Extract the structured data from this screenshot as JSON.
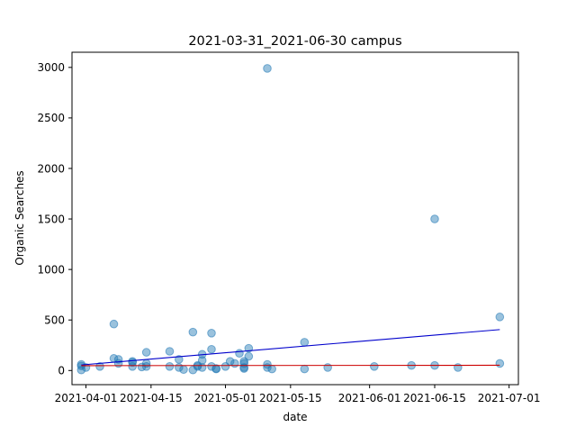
{
  "chart_data": {
    "type": "scatter",
    "title": "2021-03-31_2021-06-30 campus",
    "xlabel": "date",
    "ylabel": "Organic Searches",
    "xlim": [
      "2021-03-29",
      "2021-07-03"
    ],
    "ylim": [
      -140,
      3150
    ],
    "x_ticks": [
      "2021-04-01",
      "2021-04-15",
      "2021-05-01",
      "2021-05-15",
      "2021-06-01",
      "2021-06-15",
      "2021-07-01"
    ],
    "y_ticks": [
      0,
      500,
      1000,
      1500,
      2000,
      2500,
      3000
    ],
    "grid": false,
    "legend": "none",
    "point_color": "#1f77b4",
    "points": [
      [
        "2021-03-31",
        60
      ],
      [
        "2021-03-31",
        45
      ],
      [
        "2021-03-31",
        5
      ],
      [
        "2021-04-01",
        30
      ],
      [
        "2021-04-04",
        40
      ],
      [
        "2021-04-07",
        460
      ],
      [
        "2021-04-07",
        120
      ],
      [
        "2021-04-08",
        110
      ],
      [
        "2021-04-08",
        70
      ],
      [
        "2021-04-11",
        90
      ],
      [
        "2021-04-11",
        80
      ],
      [
        "2021-04-11",
        40
      ],
      [
        "2021-04-13",
        35
      ],
      [
        "2021-04-14",
        180
      ],
      [
        "2021-04-14",
        70
      ],
      [
        "2021-04-14",
        40
      ],
      [
        "2021-04-19",
        190
      ],
      [
        "2021-04-19",
        40
      ],
      [
        "2021-04-21",
        110
      ],
      [
        "2021-04-21",
        30
      ],
      [
        "2021-04-22",
        10
      ],
      [
        "2021-04-24",
        380
      ],
      [
        "2021-04-24",
        5
      ],
      [
        "2021-04-25",
        50
      ],
      [
        "2021-04-25",
        40
      ],
      [
        "2021-04-26",
        160
      ],
      [
        "2021-04-26",
        100
      ],
      [
        "2021-04-26",
        30
      ],
      [
        "2021-04-28",
        370
      ],
      [
        "2021-04-28",
        210
      ],
      [
        "2021-04-28",
        40
      ],
      [
        "2021-04-29",
        20
      ],
      [
        "2021-04-29",
        15
      ],
      [
        "2021-05-01",
        40
      ],
      [
        "2021-05-02",
        90
      ],
      [
        "2021-05-03",
        70
      ],
      [
        "2021-05-04",
        170
      ],
      [
        "2021-05-05",
        90
      ],
      [
        "2021-05-05",
        70
      ],
      [
        "2021-05-05",
        30
      ],
      [
        "2021-05-05",
        20
      ],
      [
        "2021-05-06",
        220
      ],
      [
        "2021-05-06",
        140
      ],
      [
        "2021-05-10",
        2990
      ],
      [
        "2021-05-10",
        60
      ],
      [
        "2021-05-10",
        30
      ],
      [
        "2021-05-11",
        15
      ],
      [
        "2021-05-18",
        280
      ],
      [
        "2021-05-18",
        15
      ],
      [
        "2021-05-23",
        30
      ],
      [
        "2021-06-02",
        40
      ],
      [
        "2021-06-10",
        50
      ],
      [
        "2021-06-15",
        1500
      ],
      [
        "2021-06-15",
        50
      ],
      [
        "2021-06-20",
        30
      ],
      [
        "2021-06-29",
        530
      ],
      [
        "2021-06-29",
        70
      ]
    ],
    "lines": [
      {
        "color": "#0000cc",
        "from": [
          "2021-03-31",
          55
        ],
        "to": [
          "2021-06-29",
          405
        ]
      },
      {
        "color": "#cc0000",
        "from": [
          "2021-03-31",
          48
        ],
        "to": [
          "2021-06-29",
          52
        ]
      }
    ]
  }
}
